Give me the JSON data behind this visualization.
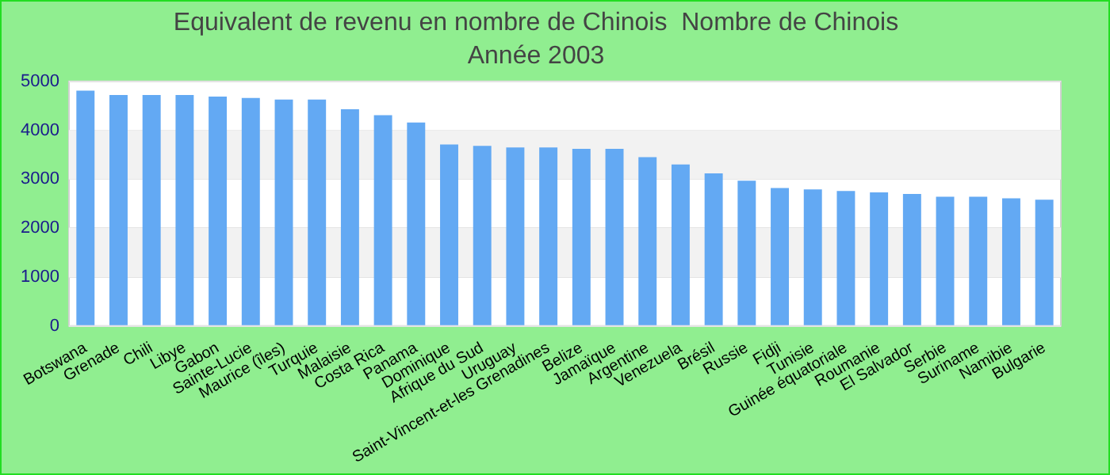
{
  "chart_data": {
    "type": "bar",
    "title": "Equivalent de revenu en nombre de Chinois  Nombre de Chinois",
    "subtitle": "Année 2003",
    "categories": [
      "Botswana",
      "Grenade",
      "Chili",
      "Libye",
      "Gabon",
      "Sainte-Lucie",
      "Maurice (îles)",
      "Turquie",
      "Malaisie",
      "Costa Rica",
      "Panama",
      "Dominique",
      "Afrique du Sud",
      "Uruguay",
      "Saint-Vincent-et-les Grenadines",
      "Belize",
      "Jamaïque",
      "Argentine",
      "Venezuela",
      "Brésil",
      "Russie",
      "Fidji",
      "Tunisie",
      "Guinée équatoriale",
      "Roumanie",
      "El Salvador",
      "Serbie",
      "Suriname",
      "Namibie",
      "Bulgarie"
    ],
    "values": [
      4810,
      4720,
      4720,
      4720,
      4690,
      4660,
      4630,
      4630,
      4430,
      4310,
      4160,
      3710,
      3680,
      3650,
      3650,
      3620,
      3620,
      3450,
      3300,
      3120,
      2970,
      2820,
      2790,
      2760,
      2730,
      2700,
      2640,
      2640,
      2610,
      2580
    ],
    "color": "#63a9f3",
    "ylim": [
      0,
      5000
    ],
    "yticks": [
      0,
      1000,
      2000,
      3000,
      4000,
      5000
    ],
    "grid": "y"
  }
}
